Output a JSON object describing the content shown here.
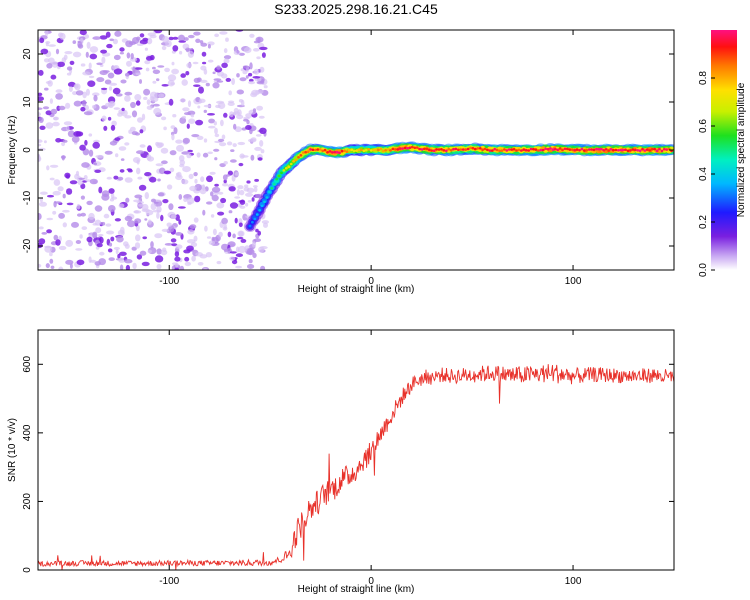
{
  "title": "S233.2025.298.16.21.C45",
  "chart_data": [
    {
      "type": "heatmap",
      "xlabel": "Height of straight line (km)",
      "ylabel": "Frequency (Hz)",
      "xlim": [
        -165,
        150
      ],
      "ylim": [
        -25,
        25
      ],
      "xticks": [
        -100,
        0,
        100
      ],
      "yticks": [
        -20,
        -10,
        0,
        10,
        20
      ],
      "grid": false,
      "noise_region_x": [
        -165,
        -52
      ],
      "ridge": {
        "x": [
          -60,
          -56,
          -52,
          -48,
          -44,
          -40,
          -36,
          -33,
          -30,
          -25,
          -20,
          -15,
          -10,
          -5,
          0,
          5,
          10,
          15,
          20,
          30,
          40,
          50,
          60,
          70,
          80,
          90,
          100,
          110,
          120,
          130,
          140,
          150
        ],
        "y": [
          -16,
          -13,
          -10,
          -7,
          -4.5,
          -3,
          -1.5,
          -0.5,
          0,
          0,
          -0.5,
          -0.5,
          0,
          0,
          0,
          0,
          0,
          0.5,
          0.5,
          0,
          0,
          0.3,
          0,
          0,
          0,
          0.2,
          0,
          0,
          0,
          0,
          0,
          0
        ],
        "amplitude": [
          0.3,
          0.35,
          0.4,
          0.5,
          0.6,
          0.7,
          0.8,
          0.85,
          0.9,
          0.85,
          0.95,
          0.95,
          0.7,
          0.75,
          0.75,
          0.8,
          0.85,
          0.98,
          0.95,
          0.9,
          0.9,
          0.85,
          0.9,
          0.9,
          0.92,
          0.95,
          0.9,
          0.95,
          0.95,
          0.95,
          0.95,
          0.9
        ]
      },
      "colorbar": {
        "label": "Normalized spectral amplitude",
        "ticks": [
          0.0,
          0.2,
          0.4,
          0.6,
          0.8
        ],
        "range": [
          0,
          1
        ]
      }
    },
    {
      "type": "line",
      "xlabel": "Height of straight line (km)",
      "ylabel": "SNR (10 * v/v)",
      "xlim": [
        -165,
        150
      ],
      "ylim": [
        0,
        700
      ],
      "xticks": [
        -100,
        0,
        100
      ],
      "yticks": [
        0,
        200,
        400,
        600
      ],
      "grid": false,
      "color": "#e8312a",
      "x": [
        -165,
        -140,
        -120,
        -100,
        -80,
        -60,
        -50,
        -45,
        -40,
        -38,
        -36,
        -34,
        -32,
        -30,
        -28,
        -26,
        -24,
        -22,
        -20,
        -18,
        -16,
        -14,
        -12,
        -10,
        -8,
        -6,
        -4,
        -2,
        0,
        2,
        4,
        6,
        8,
        10,
        12,
        14,
        16,
        18,
        20,
        22,
        24,
        26,
        28,
        30,
        35,
        40,
        50,
        60,
        70,
        80,
        90,
        100,
        110,
        120,
        130,
        140,
        150
      ],
      "values": [
        18,
        20,
        19,
        20,
        20,
        21,
        22,
        30,
        50,
        90,
        120,
        140,
        160,
        180,
        190,
        200,
        215,
        225,
        235,
        240,
        255,
        265,
        270,
        280,
        290,
        300,
        320,
        330,
        345,
        370,
        390,
        410,
        430,
        450,
        470,
        490,
        510,
        525,
        540,
        550,
        555,
        560,
        565,
        560,
        570,
        565,
        570,
        575,
        568,
        570,
        575,
        565,
        570,
        568,
        565,
        568,
        560
      ],
      "noise_amplitude": [
        7,
        8,
        8,
        8,
        8,
        9,
        9,
        10,
        20,
        35,
        40,
        40,
        40,
        40,
        38,
        36,
        36,
        36,
        36,
        36,
        36,
        36,
        36,
        34,
        34,
        34,
        32,
        32,
        32,
        30,
        30,
        28,
        28,
        26,
        26,
        24,
        24,
        22,
        22,
        22,
        22,
        22,
        22,
        22,
        22,
        22,
        24,
        24,
        26,
        26,
        30,
        24,
        22,
        22,
        22,
        22,
        24
      ]
    }
  ]
}
